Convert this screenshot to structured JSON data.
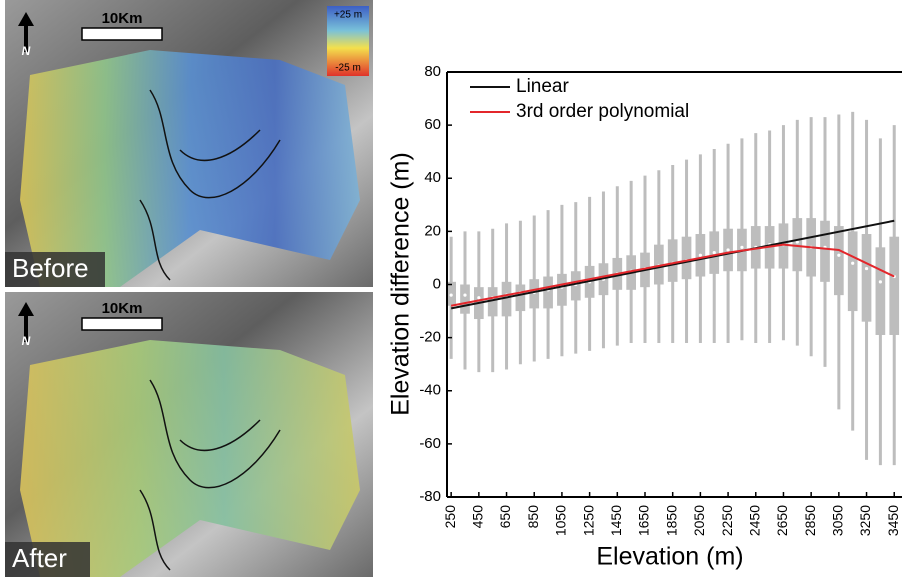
{
  "panels": [
    {
      "label": "Before",
      "scale": "10Km",
      "north": "N",
      "colorbar": {
        "max": "+25 m",
        "min": "-25 m"
      }
    },
    {
      "label": "After",
      "scale": "10Km",
      "north": "N"
    }
  ],
  "chart_data": {
    "type": "box",
    "xlabel": "Elevation (m)",
    "ylabel": "Elevation difference (m)",
    "xlim": [
      220,
      3470
    ],
    "xticks": [
      250,
      450,
      650,
      850,
      1050,
      1250,
      1450,
      1650,
      1850,
      2050,
      2250,
      2450,
      2650,
      2850,
      3050,
      3250,
      3450
    ],
    "ylim": [
      -80,
      80
    ],
    "yticks": [
      -80,
      -60,
      -40,
      -20,
      0,
      20,
      40,
      60,
      80
    ],
    "legend": "upper left",
    "boxes": {
      "color": "#bdbdbd",
      "median_color": "#ffffff",
      "x": [
        250,
        350,
        450,
        550,
        650,
        750,
        850,
        950,
        1050,
        1150,
        1250,
        1350,
        1450,
        1550,
        1650,
        1750,
        1850,
        1950,
        2050,
        2150,
        2250,
        2350,
        2450,
        2550,
        2650,
        2750,
        2850,
        2950,
        3050,
        3150,
        3250,
        3350,
        3450
      ],
      "whisker_low": [
        -28,
        -32,
        -33,
        -33,
        -32,
        -30,
        -29,
        -28,
        -27,
        -26,
        -25,
        -24,
        -23,
        -22,
        -22,
        -22,
        -22,
        -22,
        -22,
        -22,
        -22,
        -21,
        -22,
        -22,
        -21,
        -23,
        -27,
        -31,
        -47,
        -55,
        -66,
        -68,
        -68
      ],
      "q1": [
        -8,
        -11,
        -13,
        -12,
        -12,
        -10,
        -9,
        -9,
        -8,
        -6,
        -5,
        -4,
        -2,
        -2,
        -1,
        0,
        1,
        2,
        3,
        4,
        5,
        5,
        6,
        6,
        6,
        5,
        3,
        1,
        -4,
        -10,
        -14,
        -19,
        -19
      ],
      "median": [
        -4,
        -4,
        -5,
        -5,
        -4,
        -3,
        -3,
        -2,
        -1,
        0,
        1,
        2,
        4,
        5,
        6,
        7,
        8,
        9,
        11,
        12,
        13,
        14,
        14,
        15,
        15,
        16,
        14,
        14,
        11,
        8,
        6,
        1,
        3
      ],
      "q3": [
        1,
        0,
        -1,
        -1,
        1,
        0,
        2,
        3,
        4,
        5,
        7,
        8,
        10,
        11,
        12,
        15,
        17,
        18,
        19,
        20,
        21,
        21,
        22,
        22,
        23,
        25,
        25,
        24,
        22,
        20,
        19,
        14,
        18
      ],
      "whisker_high": [
        18,
        20,
        20,
        21,
        23,
        24,
        26,
        28,
        30,
        31,
        33,
        35,
        37,
        39,
        41,
        43,
        45,
        47,
        49,
        51,
        53,
        55,
        57,
        58,
        60,
        62,
        63,
        63,
        64,
        65,
        62,
        55,
        60
      ]
    },
    "series": [
      {
        "name": "Linear",
        "color": "#111111",
        "x": [
          250,
          3450
        ],
        "values": [
          -9,
          24
        ]
      },
      {
        "name": "3rd order polynomial",
        "color": "#e3262b",
        "x": [
          250,
          650,
          1050,
          1450,
          1850,
          2250,
          2650,
          3050,
          3450
        ],
        "values": [
          -8,
          -4,
          0,
          4,
          8,
          12,
          15,
          13,
          3
        ]
      }
    ]
  }
}
